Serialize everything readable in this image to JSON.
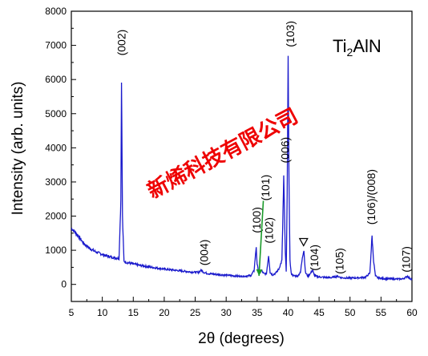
{
  "chart_data": {
    "type": "line",
    "xlabel": "2θ (degrees)",
    "ylabel": "Intensity (arb. units)",
    "xlim": [
      5,
      60
    ],
    "ylim": [
      -500,
      8000
    ],
    "xticks": [
      5,
      10,
      15,
      20,
      25,
      30,
      35,
      40,
      45,
      50,
      55,
      60
    ],
    "yticks": [
      0,
      1000,
      2000,
      3000,
      4000,
      5000,
      6000,
      7000,
      8000
    ],
    "line_color": "#1a1acc",
    "compound_label": {
      "main": "Ti",
      "sub": "2",
      "rest": "AlN"
    },
    "watermark": "新烯科技有限公司",
    "series": [
      {
        "x": [
          5,
          6,
          7,
          8,
          9,
          10,
          11,
          12,
          12.7,
          13.0,
          13.1,
          13.25,
          13.5,
          14,
          15,
          16,
          18,
          20,
          22,
          24,
          25.5,
          26.0,
          26.4,
          27,
          28,
          30,
          32,
          33,
          34,
          34.5,
          34.85,
          35.0,
          35.3,
          35.7,
          36.0,
          36.5,
          36.85,
          37.1,
          37.5,
          38,
          38.5,
          39.0,
          39.3,
          39.55,
          39.7,
          39.85,
          40.0,
          40.15,
          40.3,
          40.5,
          40.8,
          41.5,
          42.0,
          42.3,
          42.55,
          42.8,
          43.2,
          43.6,
          43.95,
          44.2,
          44.6,
          45.5,
          47,
          48.0,
          48.5,
          49,
          51,
          52.5,
          53.2,
          53.55,
          53.8,
          54.1,
          54.5,
          55.5,
          57,
          58.5,
          59.3,
          59.6,
          60
        ],
        "y": [
          1650,
          1450,
          1200,
          1050,
          950,
          880,
          820,
          780,
          760,
          2500,
          6050,
          2000,
          680,
          640,
          600,
          560,
          500,
          450,
          410,
          370,
          350,
          420,
          350,
          320,
          300,
          270,
          240,
          240,
          260,
          400,
          1100,
          600,
          300,
          420,
          320,
          310,
          850,
          350,
          280,
          330,
          450,
          700,
          3150,
          900,
          350,
          2700,
          6550,
          3000,
          700,
          320,
          260,
          240,
          350,
          800,
          1000,
          350,
          240,
          320,
          420,
          280,
          230,
          210,
          200,
          240,
          200,
          190,
          190,
          210,
          330,
          1420,
          700,
          250,
          190,
          170,
          160,
          160,
          240,
          180,
          150
        ]
      }
    ],
    "peak_labels": [
      {
        "text": "(002)",
        "x": 13.1,
        "y": 6700
      },
      {
        "text": "(004)",
        "x": 26.4,
        "y": 550
      },
      {
        "text": "(100)",
        "x": 34.9,
        "y": 1500
      },
      {
        "text": "(101)",
        "x": 36.3,
        "y": 2450
      },
      {
        "text": "(102)",
        "x": 36.9,
        "y": 1200
      },
      {
        "text": "(006)",
        "x": 39.5,
        "y": 3550
      },
      {
        "text": "(103)",
        "x": 40.3,
        "y": 6950
      },
      {
        "text": "(104)",
        "x": 44.2,
        "y": 400
      },
      {
        "text": "(105)",
        "x": 48.3,
        "y": 300
      },
      {
        "text": "(106)/(008)",
        "x": 53.4,
        "y": 1750
      },
      {
        "text": "(107)",
        "x": 59.0,
        "y": 350
      }
    ],
    "markers": [
      {
        "type": "triangle-down",
        "x": 42.5,
        "y": 1250
      }
    ],
    "arrows": [
      {
        "from": [
          36.0,
          2450
        ],
        "to": [
          35.3,
          250
        ],
        "color": "#1a9a2a"
      }
    ]
  }
}
